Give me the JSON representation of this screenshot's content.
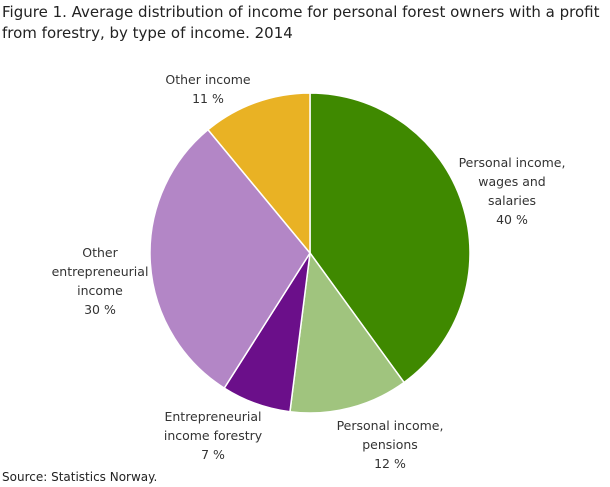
{
  "chart_data": {
    "type": "pie",
    "title": "Figure 1. Average distribution of income for personal forest owners with a profit from forestry,  by type of income. 2014",
    "categories": [
      "Personal income, wages and salaries",
      "Personal income, pensions",
      "Entrepreneurial income forestry",
      "Other entrepreneurial income",
      "Other income"
    ],
    "values": [
      40,
      12,
      7,
      30,
      11
    ],
    "value_labels": [
      "40 %",
      "12 %",
      "7 %",
      "30 %",
      "11 %"
    ],
    "colors": [
      "#3f8900",
      "#a0c47e",
      "#6b0f8a",
      "#b386c6",
      "#e9b224"
    ],
    "source": "Source: Statistics Norway."
  }
}
